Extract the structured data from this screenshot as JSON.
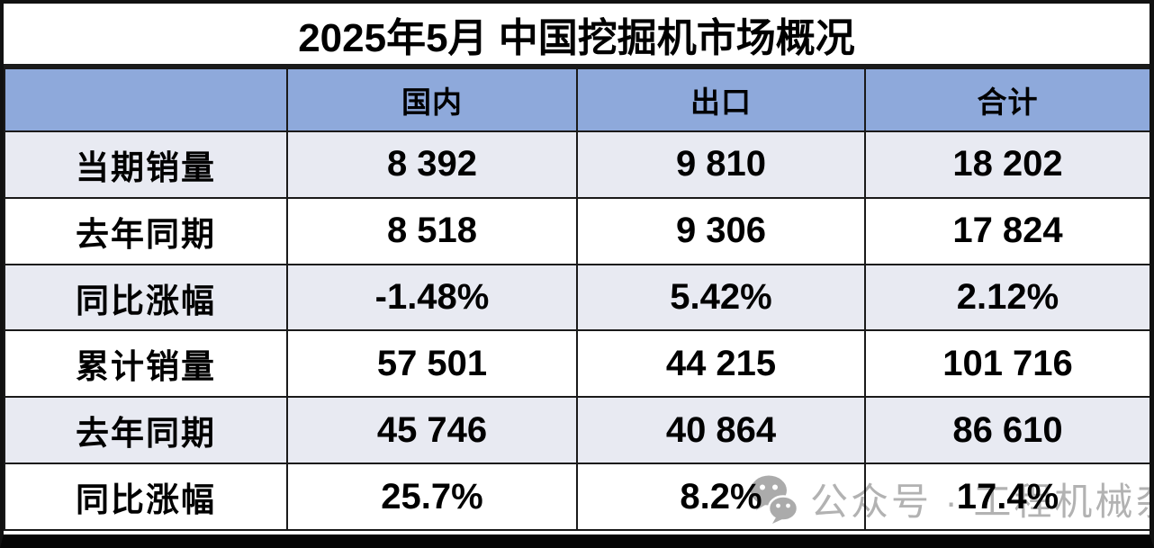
{
  "page_title": "2025年5月 中国挖掘机市场概况",
  "chart_data": {
    "type": "table",
    "title": "2025年5月 中国挖掘机市场概况",
    "columns": [
      "",
      "国内",
      "出口",
      "合计"
    ],
    "rows": [
      [
        "当期销量",
        "8 392",
        "9 810",
        "18 202"
      ],
      [
        "去年同期",
        "8 518",
        "9 306",
        "17 824"
      ],
      [
        "同比涨幅",
        "-1.48%",
        "5.42%",
        "2.12%"
      ],
      [
        "累计销量",
        "57 501",
        "44 215",
        "101 716"
      ],
      [
        "去年同期",
        "45 746",
        "40 864",
        "86 610"
      ],
      [
        "同比涨幅",
        "25.7%",
        "8.2%",
        "17.4%"
      ]
    ],
    "layout": {
      "banded_rows": true,
      "header_fill": "#8EA9DB",
      "band_fill": "#E8EAF2",
      "grid": "black solid"
    }
  },
  "watermark": {
    "icon": "wechat-icon",
    "text": "公众号 · 工程机械杂志",
    "color": "#b2b2b2"
  },
  "colors": {
    "frame_border": "#111111",
    "header_blue": "#8EA9DB",
    "band_lavender": "#E8EAF2",
    "text_black": "#000000"
  }
}
